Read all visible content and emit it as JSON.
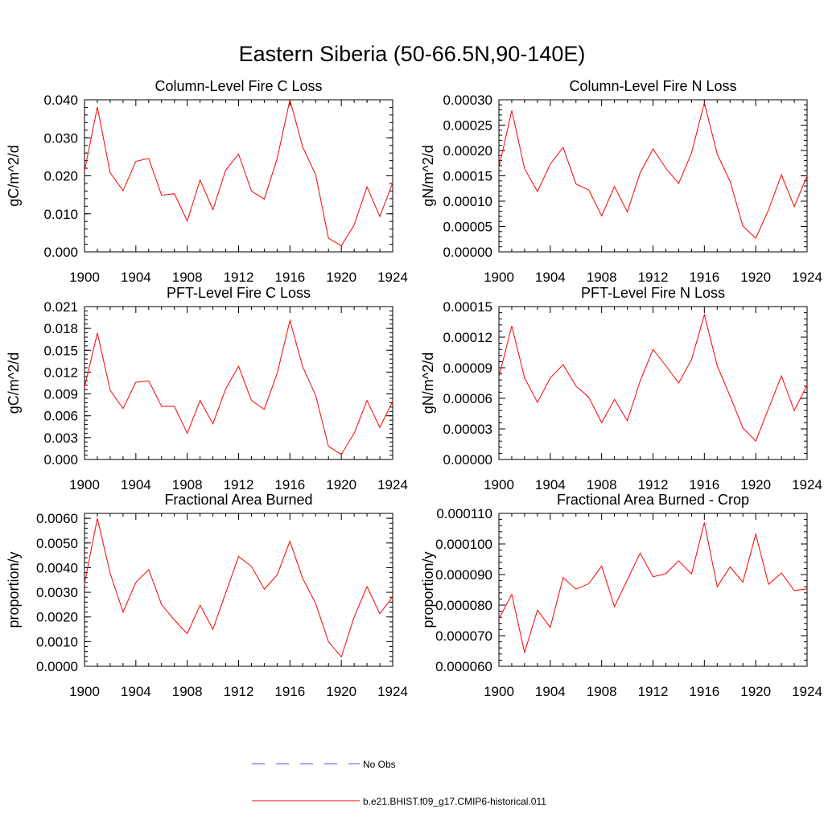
{
  "figure_title": "Eastern Siberia (50-66.5N,90-140E)",
  "chart_data": [
    {
      "type": "line",
      "title": "Column-Level Fire C Loss",
      "ylabel": "gC/m^2/d",
      "xlim": [
        1900,
        1924
      ],
      "ylim": [
        0.0,
        0.04
      ],
      "x_ticks": [
        "1900",
        "1904",
        "1908",
        "1912",
        "1916",
        "1920",
        "1924"
      ],
      "y_ticks": [
        "0.000",
        "0.010",
        "0.020",
        "0.030",
        "0.040"
      ],
      "x": [
        1900,
        1901,
        1902,
        1903,
        1904,
        1905,
        1906,
        1907,
        1908,
        1909,
        1910,
        1911,
        1912,
        1913,
        1914,
        1915,
        1916,
        1917,
        1918,
        1919,
        1920,
        1921,
        1922,
        1923,
        1924
      ],
      "series": [
        {
          "name": "b.e21.BHIST.f09_g17.CMIP6-historical.011",
          "color": "#ff0000",
          "values": [
            0.0212,
            0.0381,
            0.0208,
            0.0161,
            0.0238,
            0.0246,
            0.0149,
            0.0153,
            0.0081,
            0.0189,
            0.0111,
            0.0215,
            0.0257,
            0.016,
            0.0139,
            0.0245,
            0.04,
            0.0275,
            0.0203,
            0.0036,
            0.0016,
            0.0071,
            0.0171,
            0.0093,
            0.0182
          ]
        }
      ]
    },
    {
      "type": "line",
      "title": "Column-Level Fire N Loss",
      "ylabel": "gN/m^2/d",
      "xlim": [
        1900,
        1924
      ],
      "ylim": [
        0.0,
        0.0003
      ],
      "x_ticks": [
        "1900",
        "1904",
        "1908",
        "1912",
        "1916",
        "1920",
        "1924"
      ],
      "y_ticks": [
        "0.00000",
        "0.00005",
        "0.00010",
        "0.00015",
        "0.00020",
        "0.00025",
        "0.00030"
      ],
      "x": [
        1900,
        1901,
        1902,
        1903,
        1904,
        1905,
        1906,
        1907,
        1908,
        1909,
        1910,
        1911,
        1912,
        1913,
        1914,
        1915,
        1916,
        1917,
        1918,
        1919,
        1920,
        1921,
        1922,
        1923,
        1924
      ],
      "series": [
        {
          "name": "b.e21.BHIST.f09_g17.CMIP6-historical.011",
          "color": "#ff0000",
          "values": [
            0.000166,
            0.000279,
            0.000164,
            0.000119,
            0.000173,
            0.000206,
            0.000134,
            0.000122,
            7.1e-05,
            0.000129,
            7.9e-05,
            0.000156,
            0.000203,
            0.000165,
            0.000135,
            0.000195,
            0.000294,
            0.000193,
            0.000139,
            5.1e-05,
            2.7e-05,
            8.3e-05,
            0.000152,
            8.9e-05,
            0.00015
          ]
        }
      ]
    },
    {
      "type": "line",
      "title": "PFT-Level Fire C Loss",
      "ylabel": "gC/m^2/d",
      "xlim": [
        1900,
        1924
      ],
      "ylim": [
        0.0,
        0.021
      ],
      "x_ticks": [
        "1900",
        "1904",
        "1908",
        "1912",
        "1916",
        "1920",
        "1924"
      ],
      "y_ticks": [
        "0.000",
        "0.003",
        "0.006",
        "0.009",
        "0.012",
        "0.015",
        "0.018",
        "0.021"
      ],
      "x": [
        1900,
        1901,
        1902,
        1903,
        1904,
        1905,
        1906,
        1907,
        1908,
        1909,
        1910,
        1911,
        1912,
        1913,
        1914,
        1915,
        1916,
        1917,
        1918,
        1919,
        1920,
        1921,
        1922,
        1923,
        1924
      ],
      "series": [
        {
          "name": "b.e21.BHIST.f09_g17.CMIP6-historical.011",
          "color": "#ff0000",
          "values": [
            0.0099,
            0.0174,
            0.0095,
            0.007,
            0.0106,
            0.0108,
            0.0073,
            0.0073,
            0.0036,
            0.0081,
            0.0049,
            0.0097,
            0.0128,
            0.0081,
            0.0069,
            0.0118,
            0.0191,
            0.0127,
            0.0088,
            0.0018,
            0.0007,
            0.0036,
            0.0081,
            0.0044,
            0.008
          ]
        }
      ]
    },
    {
      "type": "line",
      "title": "PFT-Level Fire N Loss",
      "ylabel": "gN/m^2/d",
      "xlim": [
        1900,
        1924
      ],
      "ylim": [
        0.0,
        0.00015
      ],
      "x_ticks": [
        "1900",
        "1904",
        "1908",
        "1912",
        "1916",
        "1920",
        "1924"
      ],
      "y_ticks": [
        "0.00000",
        "0.00003",
        "0.00006",
        "0.00009",
        "0.00012",
        "0.00015"
      ],
      "x": [
        1900,
        1901,
        1902,
        1903,
        1904,
        1905,
        1906,
        1907,
        1908,
        1909,
        1910,
        1911,
        1912,
        1913,
        1914,
        1915,
        1916,
        1917,
        1918,
        1919,
        1920,
        1921,
        1922,
        1923,
        1924
      ],
      "series": [
        {
          "name": "b.e21.BHIST.f09_g17.CMIP6-historical.011",
          "color": "#ff0000",
          "values": [
            8.1e-05,
            0.000131,
            8e-05,
            5.6e-05,
            8e-05,
            9.3e-05,
            7.2e-05,
            6.1e-05,
            3.6e-05,
            5.9e-05,
            3.8e-05,
            7.7e-05,
            0.000108,
            9.2e-05,
            7.5e-05,
            9.8e-05,
            0.000142,
            9.2e-05,
            6.2e-05,
            3.1e-05,
            1.8e-05,
            5e-05,
            8.2e-05,
            4.8e-05,
            7.3e-05
          ]
        }
      ]
    },
    {
      "type": "line",
      "title": "Fractional Area Burned",
      "ylabel": "proportion/y",
      "xlim": [
        1900,
        1924
      ],
      "ylim": [
        0.0,
        0.0062
      ],
      "x_ticks": [
        "1900",
        "1904",
        "1908",
        "1912",
        "1916",
        "1920",
        "1924"
      ],
      "y_ticks": [
        "0.0000",
        "0.0010",
        "0.0020",
        "0.0030",
        "0.0040",
        "0.0050",
        "0.0060"
      ],
      "x": [
        1900,
        1901,
        1902,
        1903,
        1904,
        1905,
        1906,
        1907,
        1908,
        1909,
        1910,
        1911,
        1912,
        1913,
        1914,
        1915,
        1916,
        1917,
        1918,
        1919,
        1920,
        1921,
        1922,
        1923,
        1924
      ],
      "series": [
        {
          "name": "b.e21.BHIST.f09_g17.CMIP6-historical.011",
          "color": "#ff0000",
          "values": [
            0.00335,
            0.006,
            0.00377,
            0.0022,
            0.0034,
            0.00392,
            0.0025,
            0.00188,
            0.00132,
            0.00248,
            0.0015,
            0.00298,
            0.00445,
            0.00405,
            0.00313,
            0.0037,
            0.00507,
            0.00355,
            0.00255,
            0.001,
            0.00038,
            0.002,
            0.00323,
            0.00213,
            0.00282
          ]
        }
      ]
    },
    {
      "type": "line",
      "title": "Fractional Area Burned - Crop",
      "ylabel": "proportion/y",
      "xlim": [
        1900,
        1924
      ],
      "ylim": [
        6e-05,
        0.00011
      ],
      "x_ticks": [
        "1900",
        "1904",
        "1908",
        "1912",
        "1916",
        "1920",
        "1924"
      ],
      "y_ticks": [
        "0.000060",
        "0.000070",
        "0.000080",
        "0.000090",
        "0.000100",
        "0.000110"
      ],
      "x": [
        1900,
        1901,
        1902,
        1903,
        1904,
        1905,
        1906,
        1907,
        1908,
        1909,
        1910,
        1911,
        1912,
        1913,
        1914,
        1915,
        1916,
        1917,
        1918,
        1919,
        1920,
        1921,
        1922,
        1923,
        1924
      ],
      "series": [
        {
          "name": "b.e21.BHIST.f09_g17.CMIP6-historical.011",
          "color": "#ff0000",
          "values": [
            7.55e-05,
            8.35e-05,
            6.45e-05,
            7.84e-05,
            7.27e-05,
            8.9e-05,
            8.52e-05,
            8.7e-05,
            9.28e-05,
            7.95e-05,
            8.83e-05,
            9.7e-05,
            8.93e-05,
            9.03e-05,
            9.45e-05,
            9.02e-05,
            0.000107,
            8.6e-05,
            9.25e-05,
            8.75e-05,
            0.0001032,
            8.68e-05,
            9.05e-05,
            8.48e-05,
            8.53e-05
          ]
        }
      ]
    }
  ],
  "legend": {
    "entries": [
      {
        "label": "No Obs",
        "color": "#4d4dff",
        "style": "dashed"
      },
      {
        "label": "b.e21.BHIST.f09_g17.CMIP6-historical.011",
        "color": "#ff0000",
        "style": "solid"
      }
    ]
  }
}
